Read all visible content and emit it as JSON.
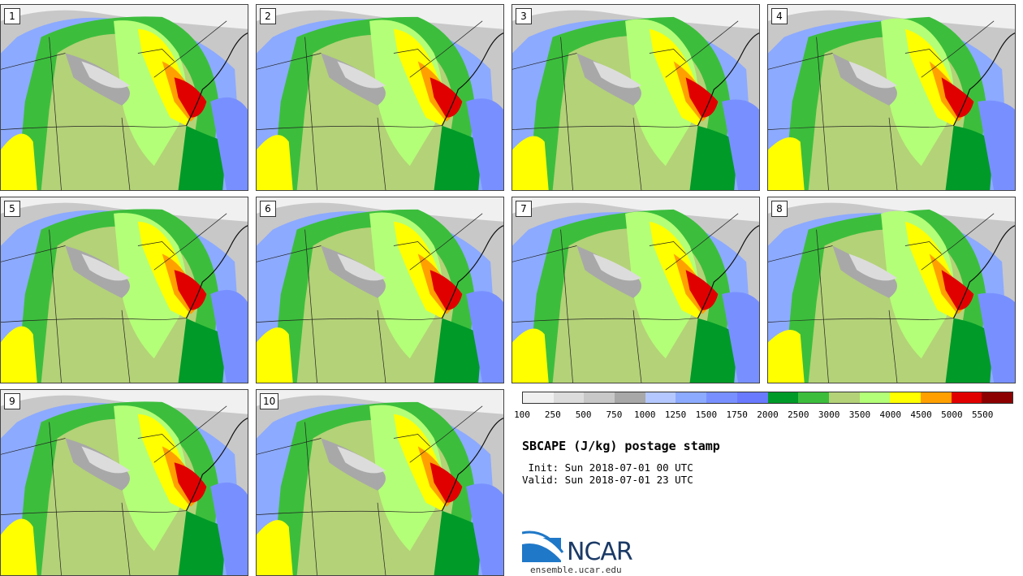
{
  "panels": [
    {
      "label": "1"
    },
    {
      "label": "2"
    },
    {
      "label": "3"
    },
    {
      "label": "4"
    },
    {
      "label": "5"
    },
    {
      "label": "6"
    },
    {
      "label": "7"
    },
    {
      "label": "8"
    },
    {
      "label": "9"
    },
    {
      "label": "10"
    }
  ],
  "colorbar": {
    "colors": [
      "#f0f0f0",
      "#dcdcdc",
      "#c8c8c8",
      "#a8a8a8",
      "#b4c8ff",
      "#8caaff",
      "#7890ff",
      "#6a7aff",
      "#009a28",
      "#3cbe3c",
      "#b4d278",
      "#b4ff78",
      "#ffff00",
      "#ffa000",
      "#e10000",
      "#8c0000"
    ],
    "ticks": [
      "100",
      "250",
      "500",
      "750",
      "1000",
      "1250",
      "1500",
      "1750",
      "2000",
      "2500",
      "3000",
      "3500",
      "4000",
      "4500",
      "5000",
      "5500"
    ]
  },
  "title": "SBCAPE (J/kg) postage stamp",
  "init": " Init: Sun 2018-07-01 00 UTC",
  "valid": "Valid: Sun 2018-07-01 23 UTC",
  "logo": {
    "text": "NCAR",
    "icon": "ncar-logo-icon"
  },
  "site": "ensemble.ucar.edu"
}
